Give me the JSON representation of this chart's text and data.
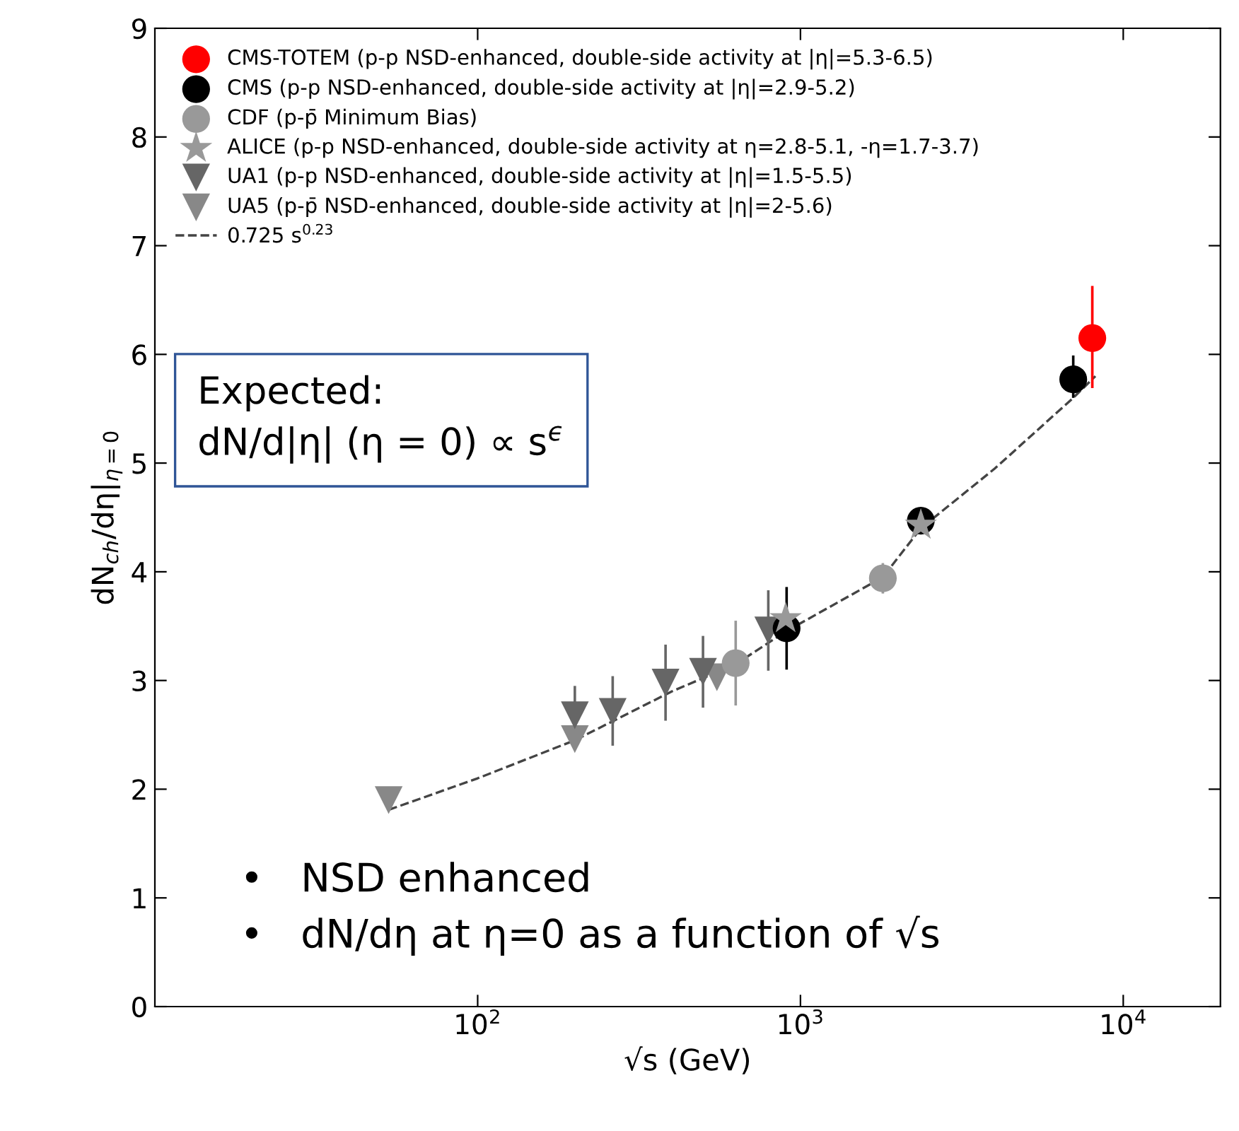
{
  "chart_data": {
    "type": "scatter",
    "xlabel": "√s (GeV)",
    "ylabel": "dN$_{ch}$/dη|$_{η=0}$",
    "xlim": [
      10,
      20000
    ],
    "xticks": [
      {
        "value": 100,
        "label": "10$^{2}$"
      },
      {
        "value": 1000,
        "label": "10$^{3}$"
      },
      {
        "value": 10000,
        "label": "10$^{4}$"
      }
    ],
    "ylim": [
      0,
      9
    ],
    "yticks": [
      0,
      1,
      2,
      3,
      4,
      5,
      6,
      7,
      8,
      9
    ],
    "log": "x",
    "grid": false,
    "legend": "top left",
    "series": [
      {
        "name": "CMS-TOTEM (p-p NSD-enhanced, double-side activity at |η|=5.3-6.5)",
        "color": "#ff0000",
        "marker": "circle",
        "x": [
          8020
        ],
        "values": [
          6.15
        ],
        "errors": [
          [
            5.69,
            6.63
          ]
        ]
      },
      {
        "name": "CMS (p-p NSD-enhanced, double-side activity at |η|=2.9-5.2)",
        "color": "#000000",
        "marker": "circle",
        "x": [
          906,
          2360,
          7000
        ],
        "values": [
          3.48,
          4.47,
          5.77
        ],
        "errors": [
          [
            3.1,
            3.86
          ],
          null,
          [
            5.6,
            5.99
          ]
        ]
      },
      {
        "name": "CDF (p-p̄ Minimum Bias)",
        "color": "#999999",
        "marker": "circle",
        "x": [
          630,
          1800
        ],
        "values": [
          3.16,
          3.94
        ],
        "errors": [
          [
            2.77,
            3.55
          ],
          [
            3.8,
            4.08
          ]
        ]
      },
      {
        "name": "ALICE (p-p NSD-enhanced, double-side activity at η=2.8-5.1, -η=1.7-3.7)",
        "color": "#999999",
        "marker": "star",
        "x": [
          900,
          2360
        ],
        "values": [
          3.57,
          4.43
        ],
        "errors": [
          null,
          null
        ]
      },
      {
        "name": "UA1 (p-p NSD-enhanced, double-side activity at |η|=1.5-5.5)",
        "color": "#666666",
        "marker": "triangle",
        "x": [
          200,
          262,
          382,
          499,
          795
        ],
        "values": [
          2.68,
          2.71,
          2.98,
          3.08,
          3.46
        ],
        "errors": [
          [
            2.45,
            2.95
          ],
          [
            2.4,
            3.04
          ],
          [
            2.63,
            3.33
          ],
          [
            2.75,
            3.41
          ],
          [
            3.09,
            3.83
          ]
        ]
      },
      {
        "name": "UA5 (p-p̄ NSD-enhanced, double-side activity at |η|=2-5.6)",
        "color": "#888888",
        "marker": "triangle",
        "x": [
          53,
          200,
          551
        ],
        "values": [
          1.9,
          2.46,
          3.03
        ],
        "errors": [
          null,
          null,
          null
        ]
      },
      {
        "name": "0.725 s$^{0.23}$",
        "type": "line",
        "color": "#444444",
        "line_style": "dashed",
        "marker": "none",
        "x": [
          53,
          100,
          200,
          400,
          630,
          900,
          1800,
          2360,
          4000,
          7000,
          8200
        ],
        "values": [
          1.81,
          2.1,
          2.45,
          2.9,
          3.15,
          3.45,
          3.95,
          4.4,
          4.95,
          5.6,
          5.8
        ]
      }
    ],
    "annotations": [
      "Expected:\ndN/d|η| (η = 0) ∝ s$^{ϵ}$",
      "•   NSD enhanced\n•   dN/dη at η=0 as a function of √s"
    ]
  }
}
